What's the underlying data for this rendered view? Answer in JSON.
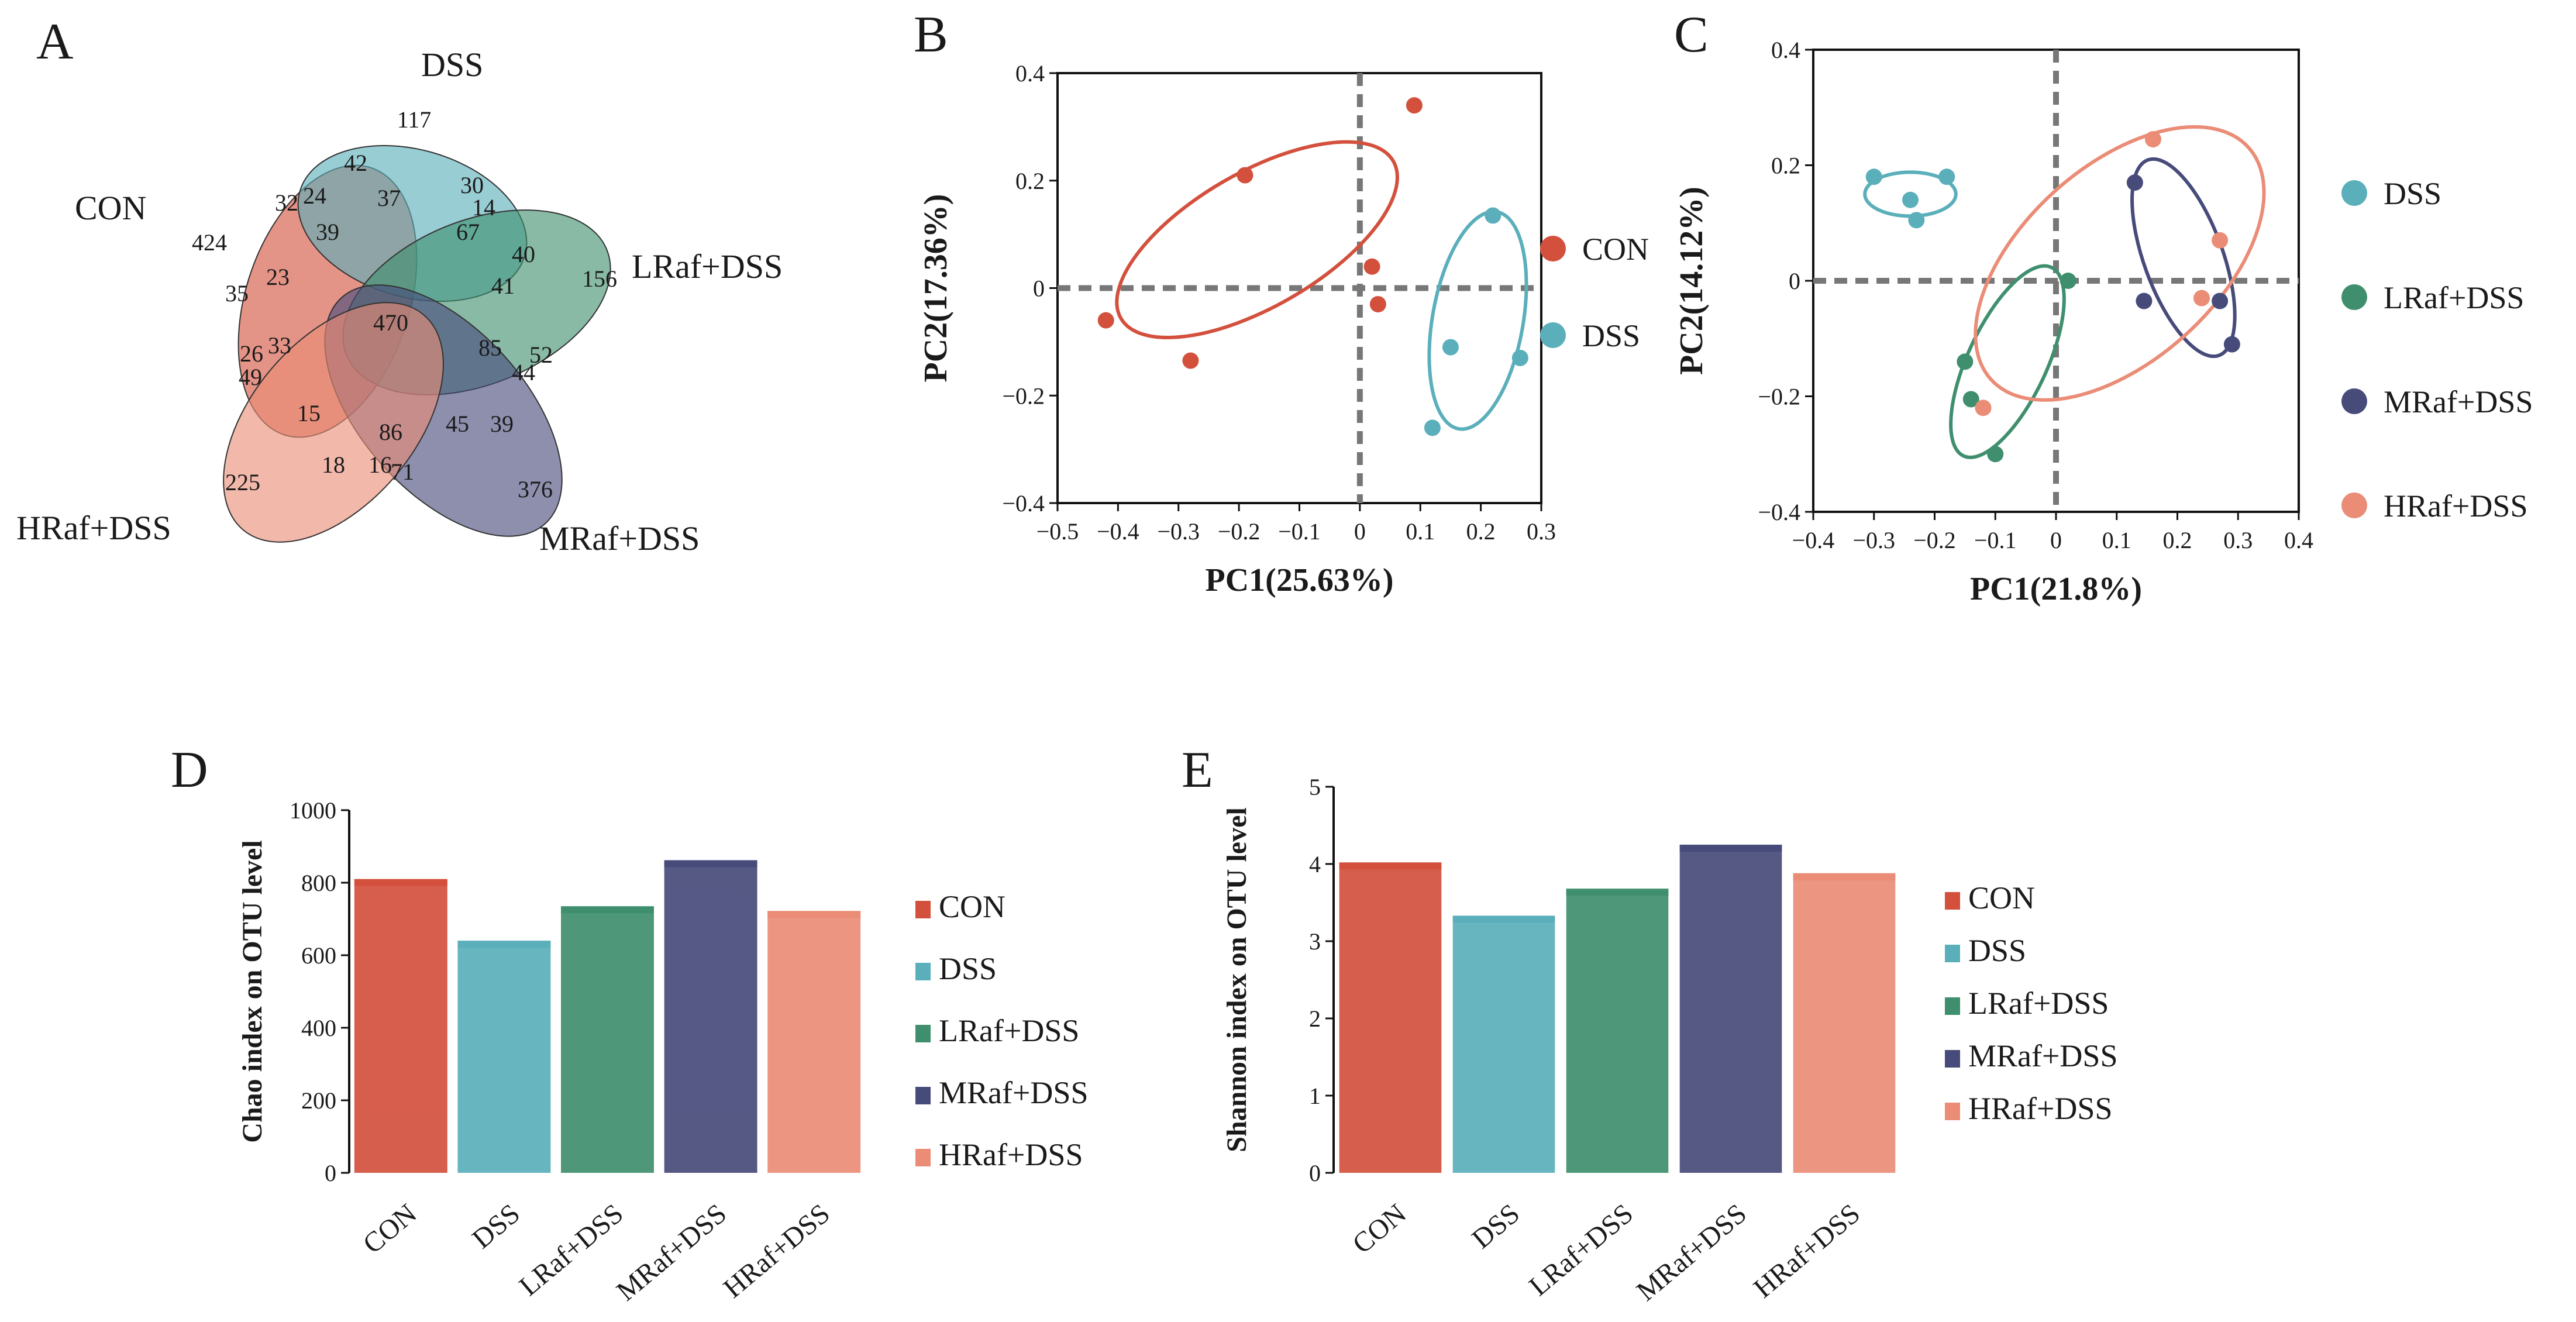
{
  "panels": {
    "a": "A",
    "b": "B",
    "c": "C",
    "d": "D",
    "e": "E"
  },
  "colors": {
    "CON": "#d3503d",
    "DSS": "#5aafba",
    "LRaf+DSS": "#3f8f6e",
    "MRaf+DSS": "#474b7a",
    "HRaf+DSS": "#ea8c76"
  },
  "venn": {
    "sets": [
      "CON",
      "DSS",
      "LRaf+DSS",
      "MRaf+DSS",
      "HRaf+DSS"
    ],
    "counts": [
      "424",
      "117",
      "156",
      "376",
      "225",
      "470",
      "42",
      "32",
      "24",
      "37",
      "30",
      "14",
      "39",
      "67",
      "40",
      "23",
      "41",
      "35",
      "85",
      "26",
      "33",
      "52",
      "49",
      "44",
      "15",
      "45",
      "86",
      "39",
      "18",
      "16",
      "71"
    ]
  },
  "chart_data": [
    {
      "panel": "B",
      "type": "scatter",
      "xlabel": "PC1(25.63%)",
      "ylabel": "PC2(17.36%)",
      "xlim": [
        -0.5,
        0.3
      ],
      "ylim": [
        -0.4,
        0.4
      ],
      "xticks": [
        "−0.5",
        "−0.4",
        "−0.3",
        "−0.2",
        "−0.1",
        "0",
        "0.1",
        "0.2",
        "0.3"
      ],
      "yticks": [
        "−0.4",
        "−0.2",
        "0",
        "0.2",
        "0.4"
      ],
      "series": [
        {
          "name": "CON",
          "points": [
            [
              0.09,
              0.34
            ],
            [
              -0.19,
              0.21
            ],
            [
              0.02,
              0.04
            ],
            [
              0.03,
              -0.03
            ],
            [
              -0.42,
              -0.06
            ],
            [
              -0.28,
              -0.135
            ]
          ]
        },
        {
          "name": "DSS",
          "points": [
            [
              0.22,
              0.135
            ],
            [
              0.15,
              -0.11
            ],
            [
              0.265,
              -0.13
            ],
            [
              0.12,
              -0.26
            ]
          ]
        }
      ]
    },
    {
      "panel": "C",
      "type": "scatter",
      "xlabel": "PC1(21.8%)",
      "ylabel": "PC2(14.12%)",
      "xlim": [
        -0.4,
        0.4
      ],
      "ylim": [
        -0.4,
        0.4
      ],
      "xticks": [
        "−0.4",
        "−0.3",
        "−0.2",
        "−0.1",
        "0",
        "0.1",
        "0.2",
        "0.3",
        "0.4"
      ],
      "yticks": [
        "−0.4",
        "−0.2",
        "0",
        "0.2",
        "0.4"
      ],
      "series": [
        {
          "name": "DSS",
          "points": [
            [
              -0.3,
              0.18
            ],
            [
              -0.24,
              0.14
            ],
            [
              -0.18,
              0.18
            ],
            [
              -0.23,
              0.105
            ]
          ]
        },
        {
          "name": "LRaf+DSS",
          "points": [
            [
              0.02,
              0.0
            ],
            [
              -0.15,
              -0.14
            ],
            [
              -0.14,
              -0.205
            ],
            [
              -0.1,
              -0.3
            ]
          ]
        },
        {
          "name": "MRaf+DSS",
          "points": [
            [
              0.13,
              0.17
            ],
            [
              0.145,
              -0.035
            ],
            [
              0.27,
              -0.035
            ],
            [
              0.29,
              -0.11
            ]
          ]
        },
        {
          "name": "HRaf+DSS",
          "points": [
            [
              0.16,
              0.245
            ],
            [
              0.27,
              0.07
            ],
            [
              0.24,
              -0.03
            ],
            [
              -0.12,
              -0.22
            ]
          ]
        }
      ]
    },
    {
      "panel": "D",
      "type": "bar",
      "ylabel": "Chao index on OTU level",
      "categories": [
        "CON",
        "DSS",
        "LRaf+DSS",
        "MRaf+DSS",
        "HRaf+DSS"
      ],
      "values": [
        810,
        640,
        735,
        862,
        722
      ],
      "ylim": [
        0,
        1000
      ],
      "yticks": [
        "0",
        "200",
        "400",
        "600",
        "800",
        "1000"
      ]
    },
    {
      "panel": "E",
      "type": "bar",
      "ylabel": "Shannon index on OTU level",
      "categories": [
        "CON",
        "DSS",
        "LRaf+DSS",
        "MRaf+DSS",
        "HRaf+DSS"
      ],
      "values": [
        4.02,
        3.33,
        3.68,
        4.25,
        3.88
      ],
      "ylim": [
        0,
        5
      ],
      "yticks": [
        "0",
        "1",
        "2",
        "3",
        "4",
        "5"
      ]
    }
  ]
}
